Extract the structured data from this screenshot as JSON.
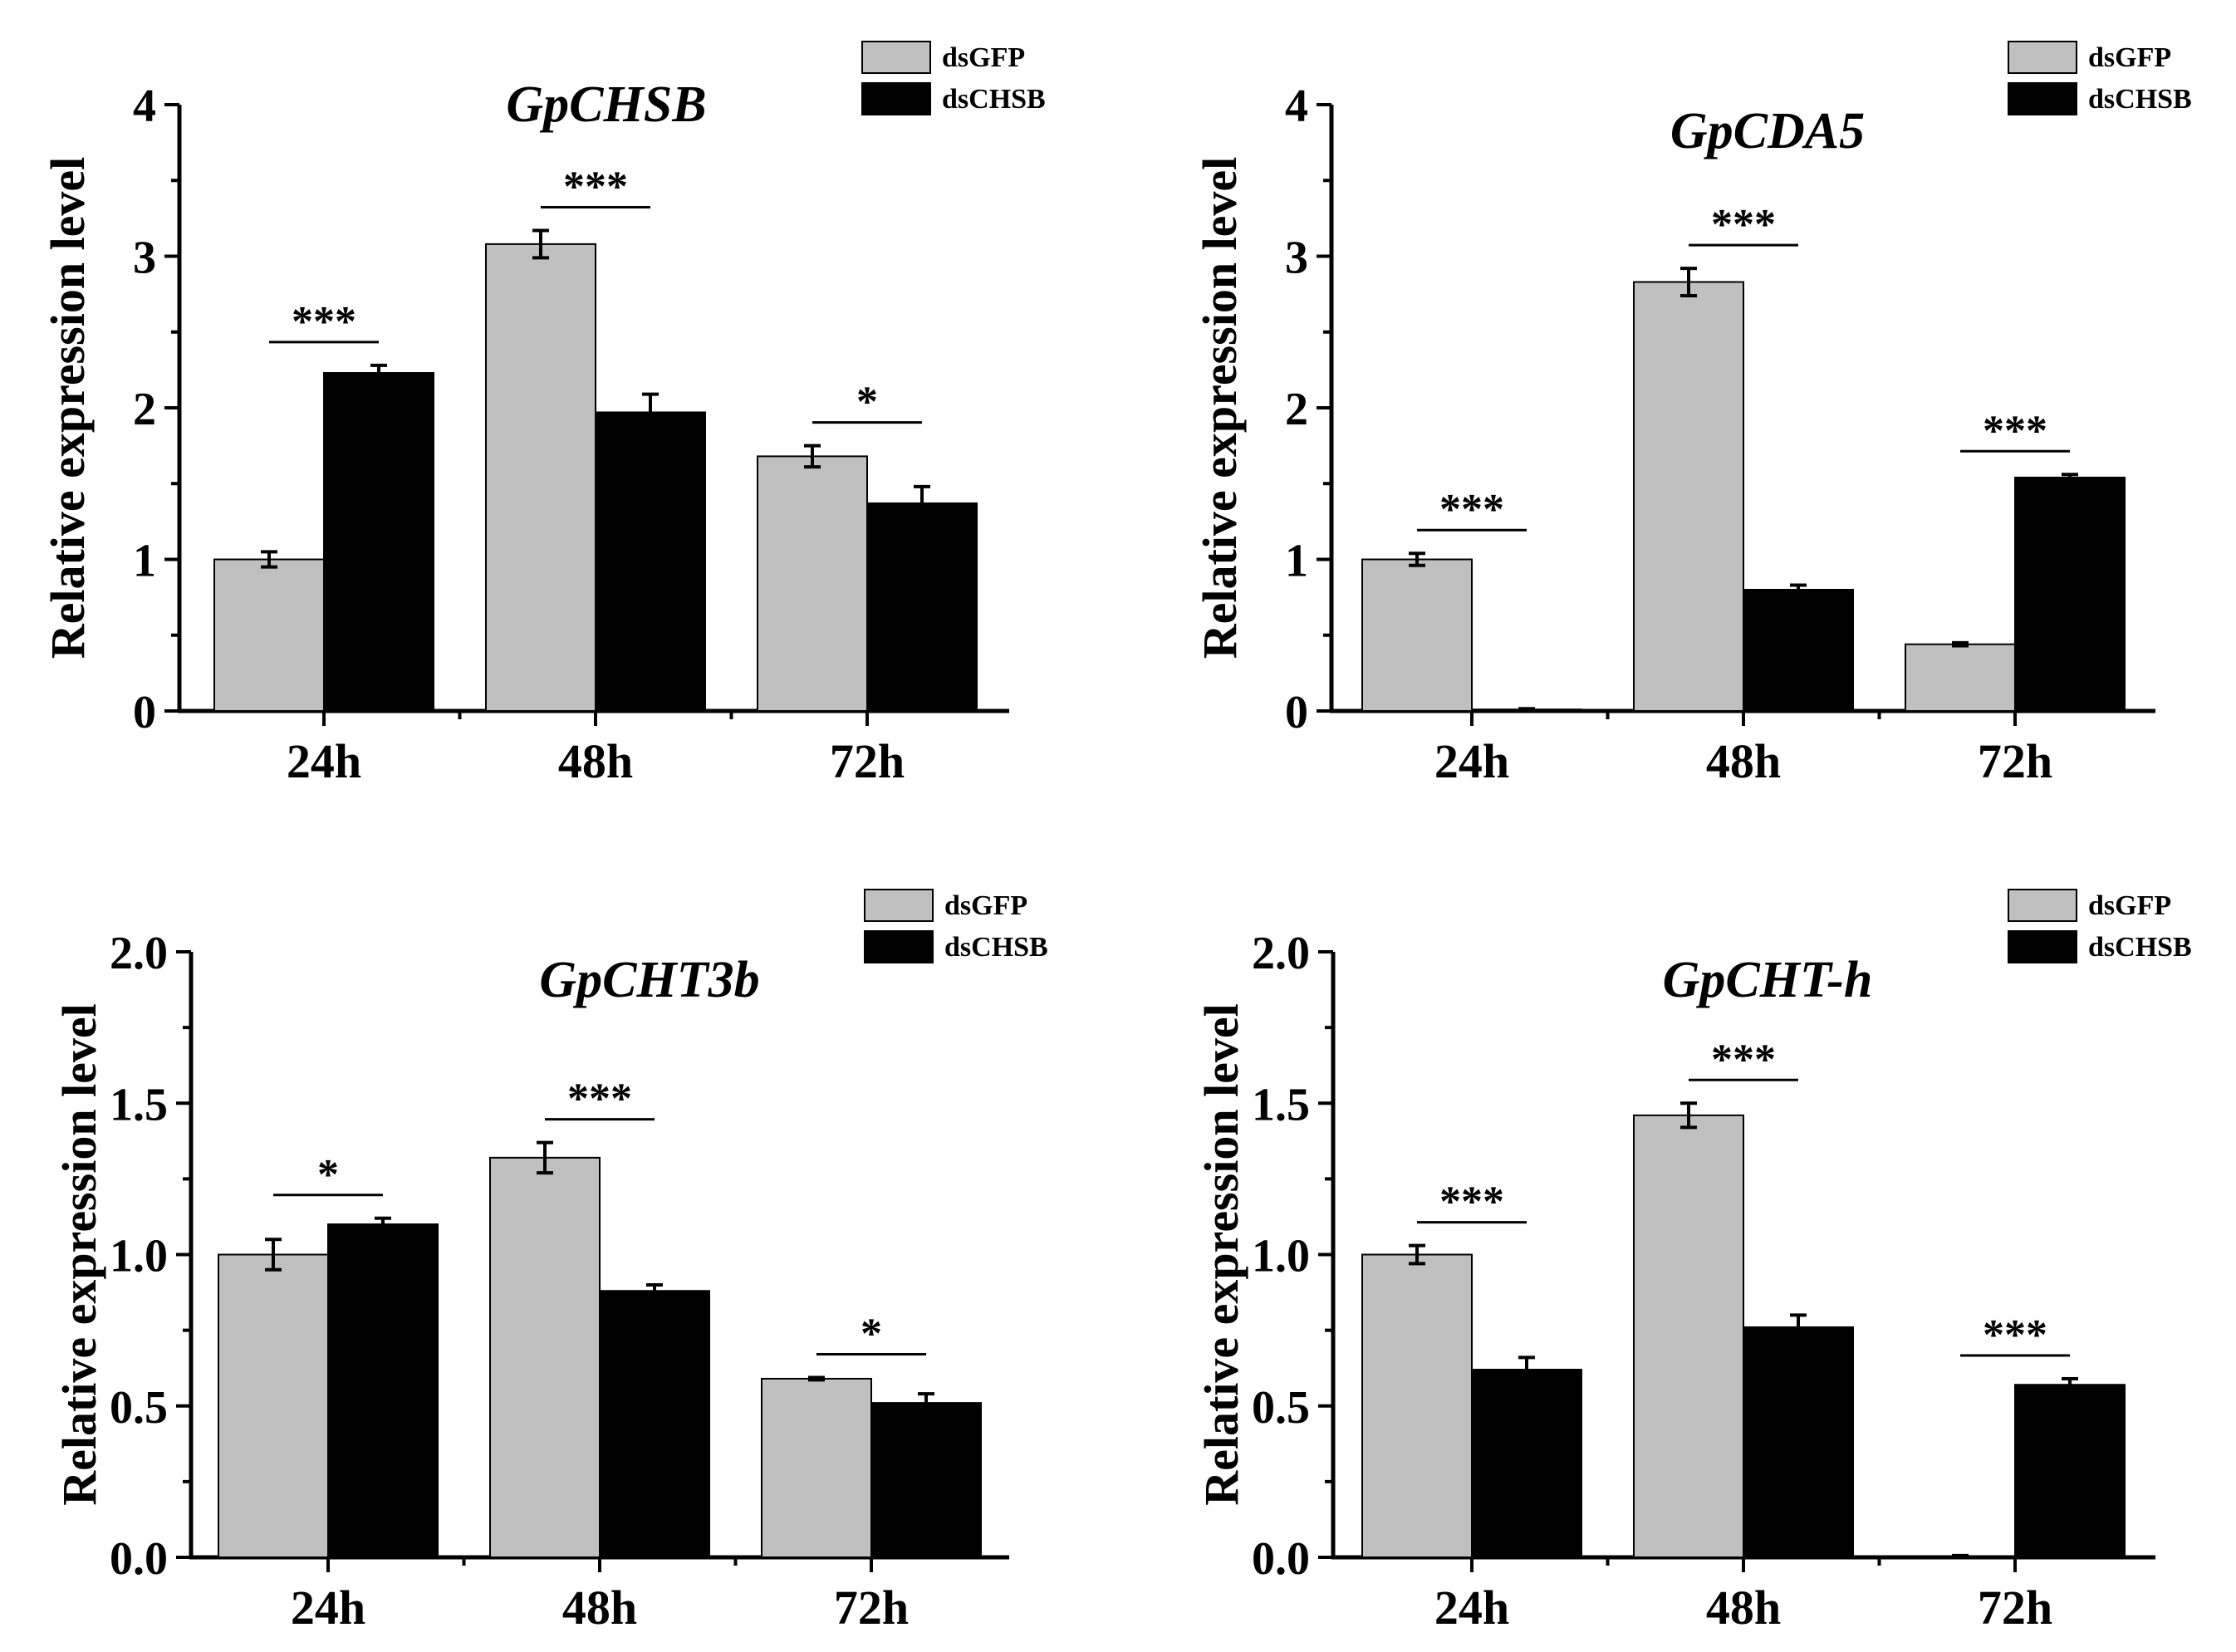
{
  "colors": {
    "dsGFP": "#c0c0c0",
    "dsCHSB": "#000000",
    "axis": "#000000"
  },
  "chart_data": [
    {
      "type": "bar",
      "title": "GpCHSB",
      "xlabel": "",
      "ylabel": "Relative expression level",
      "categories": [
        "24h",
        "48h",
        "72h"
      ],
      "ylim": [
        0,
        4
      ],
      "yticks": [
        "0",
        "1",
        "2",
        "3",
        "4"
      ],
      "legend": {
        "placement": "top-right",
        "entries": [
          "dsGFP",
          "dsCHSB"
        ]
      },
      "series": [
        {
          "name": "dsGFP",
          "values": [
            1.0,
            3.08,
            1.68
          ],
          "errors": [
            0.05,
            0.09,
            0.07
          ]
        },
        {
          "name": "dsCHSB",
          "values": [
            2.23,
            1.97,
            1.37
          ],
          "errors": [
            0.05,
            0.12,
            0.11
          ]
        }
      ],
      "significance": [
        "***",
        "***",
        "*"
      ]
    },
    {
      "type": "bar",
      "title": "GpCDA5",
      "xlabel": "",
      "ylabel": "Relative expression level",
      "categories": [
        "24h",
        "48h",
        "72h"
      ],
      "ylim": [
        0,
        4
      ],
      "yticks": [
        "0",
        "1",
        "2",
        "3",
        "4"
      ],
      "legend": {
        "placement": "top-right",
        "entries": [
          "dsGFP",
          "dsCHSB"
        ]
      },
      "series": [
        {
          "name": "dsGFP",
          "values": [
            1.0,
            2.83,
            0.44
          ],
          "errors": [
            0.04,
            0.09,
            0.01
          ]
        },
        {
          "name": "dsCHSB",
          "values": [
            0.01,
            0.8,
            1.54
          ],
          "errors": [
            0.005,
            0.03,
            0.02
          ]
        }
      ],
      "significance": [
        "***",
        "***",
        "***"
      ]
    },
    {
      "type": "bar",
      "title": "GpCHT3b",
      "xlabel": "",
      "ylabel": "Relative expression level",
      "categories": [
        "24h",
        "48h",
        "72h"
      ],
      "ylim": [
        0,
        2
      ],
      "yticks": [
        "0.0",
        "0.5",
        "1.0",
        "1.5",
        "2.0"
      ],
      "legend": {
        "placement": "top-right",
        "entries": [
          "dsGFP",
          "dsCHSB"
        ]
      },
      "series": [
        {
          "name": "dsGFP",
          "values": [
            1.0,
            1.32,
            0.59
          ],
          "errors": [
            0.05,
            0.05,
            0.004
          ]
        },
        {
          "name": "dsCHSB",
          "values": [
            1.1,
            0.88,
            0.51
          ],
          "errors": [
            0.02,
            0.02,
            0.03
          ]
        }
      ],
      "significance": [
        "*",
        "***",
        "*"
      ]
    },
    {
      "type": "bar",
      "title": "GpCHT-h",
      "xlabel": "",
      "ylabel": "Relative expression level",
      "categories": [
        "24h",
        "48h",
        "72h"
      ],
      "ylim": [
        0,
        2
      ],
      "yticks": [
        "0.0",
        "0.5",
        "1.0",
        "1.5",
        "2.0"
      ],
      "legend": {
        "placement": "top-right",
        "entries": [
          "dsGFP",
          "dsCHSB"
        ]
      },
      "series": [
        {
          "name": "dsGFP",
          "values": [
            1.0,
            1.46,
            0.004
          ],
          "errors": [
            0.03,
            0.04,
            0.002
          ]
        },
        {
          "name": "dsCHSB",
          "values": [
            0.62,
            0.76,
            0.57
          ],
          "errors": [
            0.04,
            0.04,
            0.02
          ]
        }
      ],
      "significance": [
        "***",
        "***",
        "***"
      ]
    }
  ]
}
